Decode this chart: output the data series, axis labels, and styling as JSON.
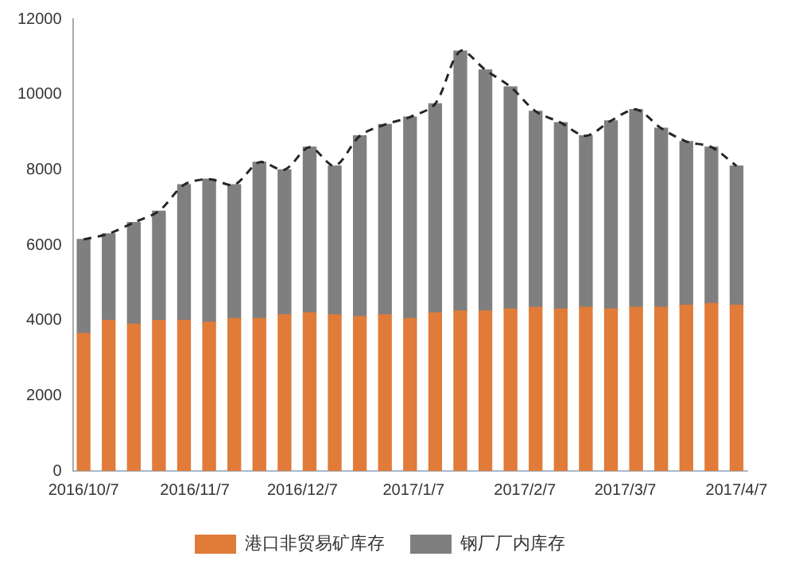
{
  "chart_data": {
    "type": "bar",
    "stacked": true,
    "x": [
      "2016-10-07",
      "2016-10-14",
      "2016-10-21",
      "2016-10-28",
      "2016-11-04",
      "2016-11-11",
      "2016-11-18",
      "2016-11-25",
      "2016-12-02",
      "2016-12-09",
      "2016-12-16",
      "2016-12-23",
      "2016-12-30",
      "2017-01-06",
      "2017-01-13",
      "2017-01-20",
      "2017-01-27",
      "2017-02-03",
      "2017-02-10",
      "2017-02-17",
      "2017-02-24",
      "2017-03-03",
      "2017-03-10",
      "2017-03-17",
      "2017-03-24",
      "2017-03-31",
      "2017-04-07"
    ],
    "series": [
      {
        "name": "港口非贸易矿库存",
        "color": "#e07b39",
        "values": [
          3650,
          4000,
          3900,
          4000,
          4000,
          3950,
          4050,
          4050,
          4150,
          4200,
          4150,
          4100,
          4150,
          4050,
          4200,
          4250,
          4250,
          4300,
          4350,
          4300,
          4350,
          4300,
          4350,
          4350,
          4400,
          4450,
          4400
        ]
      },
      {
        "name": "钢厂厂内库存",
        "color": "#7f7f7f",
        "values": [
          2500,
          2300,
          2700,
          2900,
          3600,
          3800,
          3550,
          4150,
          3850,
          4400,
          3950,
          4800,
          5050,
          5350,
          5550,
          6900,
          6400,
          5900,
          5200,
          4950,
          4550,
          5000,
          5250,
          4750,
          4350,
          4150,
          3700
        ]
      },
      {
        "type": "line",
        "color": "#262626",
        "line_style": "dashed",
        "values": [
          6150,
          6300,
          6600,
          6900,
          7600,
          7750,
          7600,
          8200,
          8000,
          8600,
          8100,
          8900,
          9200,
          9400,
          9750,
          11150,
          10650,
          10200,
          9550,
          9250,
          8900,
          9300,
          9600,
          9100,
          8750,
          8600,
          8100
        ]
      }
    ],
    "xlim": [
      "2016-10-04",
      "2017-04-10"
    ],
    "xticks": [
      {
        "value": "2016-10-07",
        "label": "2016/10/7"
      },
      {
        "value": "2016-11-07",
        "label": "2016/11/7"
      },
      {
        "value": "2016-12-07",
        "label": "2016/12/7"
      },
      {
        "value": "2017-01-07",
        "label": "2017/1/7"
      },
      {
        "value": "2017-02-07",
        "label": "2017/2/7"
      },
      {
        "value": "2017-03-07",
        "label": "2017/3/7"
      },
      {
        "value": "2017-04-07",
        "label": "2017/4/7"
      }
    ],
    "ylim": [
      0,
      12000
    ],
    "yticks": [
      0,
      2000,
      4000,
      6000,
      8000,
      10000,
      12000
    ],
    "legend": "bottom"
  }
}
